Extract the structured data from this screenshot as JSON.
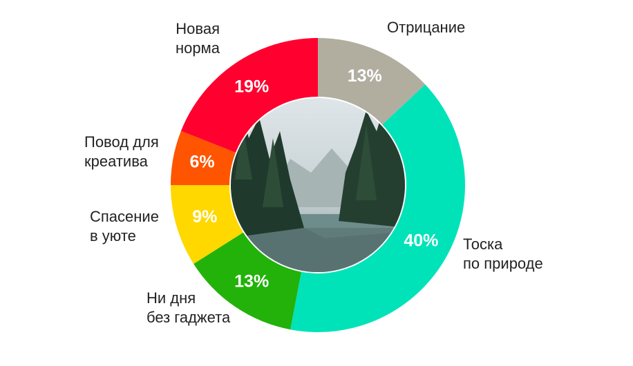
{
  "chart_data": {
    "type": "donut",
    "categories": [
      "Отрицание",
      "Тоска\nпо природе",
      "Ни дня\nбез гаджета",
      "Спасение\nв уюте",
      "Повод для\nкреатива",
      "Новая\nнорма"
    ],
    "values": [
      13,
      40,
      13,
      9,
      6,
      19
    ],
    "value_labels": [
      "13%",
      "40%",
      "13%",
      "9%",
      "6%",
      "19%"
    ],
    "colors": [
      "#b1aea0",
      "#00e3b9",
      "#22b20a",
      "#ffd800",
      "#ff5400",
      "#ff002f"
    ]
  }
}
